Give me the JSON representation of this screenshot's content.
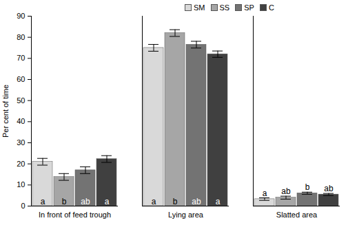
{
  "chart_data": {
    "type": "bar",
    "categories": [
      "In front of feed trough",
      "Lying area",
      "Slatted area"
    ],
    "y_label": "Per cent of time",
    "ylim": [
      0,
      90
    ],
    "yticks": [
      0,
      10,
      20,
      30,
      40,
      50,
      60,
      70,
      80,
      90
    ],
    "grid": false,
    "legend": "top",
    "series": [
      {
        "name": "SM",
        "color": "#d9d9d9",
        "values": [
          21,
          75,
          3.3
        ],
        "errors": [
          1.6,
          1.6,
          0.6
        ],
        "letters": [
          "a",
          "a",
          "a"
        ]
      },
      {
        "name": "SS",
        "color": "#a6a6a6",
        "values": [
          13.8,
          82,
          4
        ],
        "errors": [
          1.6,
          1.6,
          0.7
        ],
        "letters": [
          "b",
          "b",
          "ab"
        ]
      },
      {
        "name": "SP",
        "color": "#737373",
        "values": [
          17,
          76.5,
          6.1
        ],
        "errors": [
          1.6,
          1.6,
          0.5
        ],
        "letters": [
          "ab",
          "ab",
          "b"
        ]
      },
      {
        "name": "C",
        "color": "#404040",
        "values": [
          22.3,
          72,
          5.5
        ],
        "errors": [
          1.6,
          1.5,
          0.5
        ],
        "letters": [
          "a",
          "a",
          "ab"
        ]
      }
    ]
  }
}
